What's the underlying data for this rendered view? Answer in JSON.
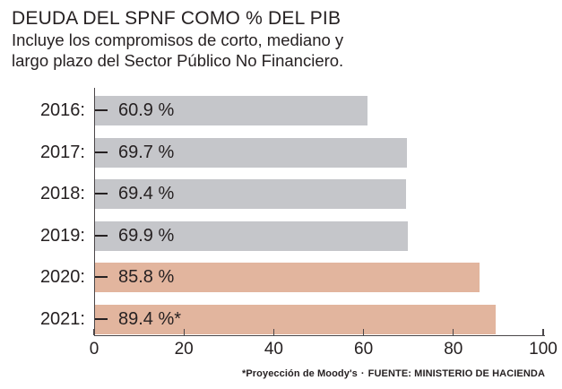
{
  "header": {
    "title": "DEUDA DEL SPNF COMO % DEL PIB",
    "subtitle_line1": "Incluye los compromisos de corto, mediano y",
    "subtitle_line2": "largo plazo del Sector Público No Financiero."
  },
  "chart_data": {
    "type": "bar",
    "orientation": "horizontal",
    "title": "DEUDA DEL SPNF COMO % DEL PIB",
    "subtitle": "Incluye los compromisos de corto, mediano y largo plazo del Sector Público No Financiero.",
    "categories": [
      "2016:",
      "2017:",
      "2018:",
      "2019:",
      "2020:",
      "2021:"
    ],
    "values": [
      60.9,
      69.7,
      69.4,
      69.9,
      85.8,
      89.4
    ],
    "bar_labels": [
      "60.9 %",
      "69.7 %",
      "69.4 %",
      "69.9 %",
      "85.8 %",
      "89.4 %*"
    ],
    "bar_colors": [
      "#c5c6ca",
      "#c5c6ca",
      "#c5c6ca",
      "#c5c6ca",
      "#e2b59e",
      "#e2b59e"
    ],
    "xlabel": "",
    "ylabel": "",
    "xlim": [
      0,
      100
    ],
    "x_ticks": [
      "0",
      "20",
      "40",
      "60",
      "80",
      "100"
    ],
    "grid": false,
    "legend": false,
    "annotation": "* = Proyección de Moody's"
  },
  "footer": {
    "note": "*Proyección de Moody's",
    "separator": "·",
    "source": "FUENTE: MINISTERIO DE HACIENDA"
  },
  "colors": {
    "bar_default": "#c5c6ca",
    "bar_highlight": "#e2b59e",
    "text": "#262122",
    "axis": "#4a4648",
    "background": "#ffffff"
  }
}
